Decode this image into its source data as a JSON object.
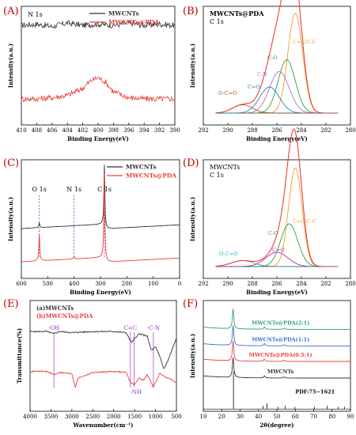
{
  "figure": {
    "panels": [
      {
        "id": "A",
        "label": "(A)"
      },
      {
        "id": "B",
        "label": "(B)"
      },
      {
        "id": "C",
        "label": "(C)"
      },
      {
        "id": "D",
        "label": "(D)"
      },
      {
        "id": "E",
        "label": "(E)"
      },
      {
        "id": "F",
        "label": "(F)"
      }
    ]
  },
  "chart_data": [
    {
      "id": "A",
      "type": "line",
      "annotation": "N 1s",
      "xlabel": "Binding Energy(eV)",
      "ylabel": "Intensity(a.u.)",
      "xlim": [
        410,
        390
      ],
      "xticks": [
        410,
        408,
        406,
        404,
        402,
        400,
        398,
        396,
        394,
        392,
        390
      ],
      "legend": {
        "placement": "top-right",
        "entries": [
          {
            "name": "MWCNTs",
            "color": "#333333"
          },
          {
            "name": "MWCNTs@PDA",
            "color": "#e8403a"
          }
        ]
      },
      "series": [
        {
          "name": "MWCNTs",
          "color": "#333333",
          "x": [
            410,
            408,
            406,
            404,
            402,
            400,
            398,
            396,
            394,
            392,
            390
          ],
          "y": [
            0.84,
            0.85,
            0.83,
            0.86,
            0.84,
            0.85,
            0.84,
            0.86,
            0.84,
            0.85,
            0.84
          ]
        },
        {
          "name": "MWCNTs@PDA",
          "color": "#e8403a",
          "x": [
            410,
            408,
            406,
            404,
            402,
            401,
            400,
            399,
            398,
            396,
            394,
            392,
            390
          ],
          "y": [
            0.22,
            0.22,
            0.23,
            0.25,
            0.31,
            0.37,
            0.4,
            0.36,
            0.28,
            0.23,
            0.22,
            0.22,
            0.22
          ]
        }
      ]
    },
    {
      "id": "B",
      "type": "line",
      "annotation": "MWCNTs@PDA\nC 1s",
      "xlabel": "Binding Energy(eV)",
      "ylabel": "Intensity(a.u.)",
      "xlim": [
        292,
        280
      ],
      "xticks": [
        292,
        290,
        288,
        286,
        284,
        282,
        280
      ],
      "peaks": [
        {
          "label": "C=C/C-C",
          "center": 284.5,
          "height": 0.84,
          "width": 0.6,
          "color": "#e8a030"
        },
        {
          "label": "C-O",
          "center": 285.2,
          "height": 0.45,
          "width": 0.7,
          "color": "#2f9e44"
        },
        {
          "label": "C-N",
          "center": 285.8,
          "height": 0.35,
          "width": 0.8,
          "color": "#b070d0"
        },
        {
          "label": "C=O",
          "center": 286.6,
          "height": 0.22,
          "width": 0.8,
          "color": "#1f8ab0"
        },
        {
          "label": "O-C=O",
          "center": 288.8,
          "height": 0.07,
          "width": 0.8,
          "color": "#a0522d"
        }
      ],
      "envelope_color": "#e8403a"
    },
    {
      "id": "C",
      "type": "line",
      "xlabel": "Binding Energy(eV)",
      "ylabel": "Intensity(a.u.)",
      "xlim": [
        600,
        0
      ],
      "xticks": [
        600,
        500,
        400,
        300,
        200,
        100,
        0
      ],
      "legend": {
        "placement": "top-right",
        "entries": [
          {
            "name": "MWCNTs",
            "color": "#333333"
          },
          {
            "name": "MWCNTs@PDA",
            "color": "#e8403a"
          }
        ]
      },
      "markers": [
        {
          "label": "O 1s",
          "x": 532
        },
        {
          "label": "N 1s",
          "x": 400
        },
        {
          "label": "C 1s",
          "x": 285
        }
      ],
      "series": [
        {
          "name": "MWCNTs",
          "color": "#333333",
          "offset": 0.42,
          "features": [
            {
              "x": 532,
              "h": 0.04
            },
            {
              "x": 285,
              "h": 0.5
            }
          ]
        },
        {
          "name": "MWCNTs@PDA",
          "color": "#e8403a",
          "offset": 0.14,
          "features": [
            {
              "x": 532,
              "h": 0.22
            },
            {
              "x": 400,
              "h": 0.02
            },
            {
              "x": 285,
              "h": 0.7
            }
          ]
        }
      ]
    },
    {
      "id": "D",
      "type": "line",
      "annotation": "MWCNTs\nC 1s",
      "xlabel": "Binding Energy(eV)",
      "ylabel": "Intensity(a.u.)",
      "xlim": [
        292,
        280
      ],
      "xticks": [
        292,
        290,
        288,
        286,
        284,
        282,
        280
      ],
      "peaks": [
        {
          "label": "C=C/C-C",
          "center": 284.5,
          "height": 0.83,
          "width": 0.55,
          "color": "#e8a030"
        },
        {
          "label": "C-O",
          "center": 285.0,
          "height": 0.36,
          "width": 0.7,
          "color": "#2f9e44"
        },
        {
          "label": "C=O",
          "center": 286.0,
          "height": 0.12,
          "width": 0.9,
          "color": "#b030b0"
        },
        {
          "label": "O-C=O",
          "center": 288.8,
          "height": 0.05,
          "width": 0.9,
          "color": "#1fb0c0"
        }
      ],
      "envelope_color": "#e8403a"
    },
    {
      "id": "E",
      "type": "line",
      "xlabel": "Wavenumber(cm⁻¹)",
      "ylabel": "Transmittance(%)",
      "xlim": [
        4000,
        500
      ],
      "xticks": [
        4000,
        3500,
        3000,
        2500,
        2000,
        1500,
        1000,
        500
      ],
      "legend": {
        "placement": "top-left",
        "entries": [
          {
            "name": "(a)MWCNTs",
            "color": "#333333"
          },
          {
            "name": "(b)MWCNTs@PDA",
            "color": "#e8403a"
          }
        ]
      },
      "markers": [
        {
          "label": "-OH",
          "x": 3430
        },
        {
          "label": "C=C",
          "x": 1600
        },
        {
          "label": "-NH",
          "x": 1510
        },
        {
          "label": "-C-N",
          "x": 1050
        }
      ],
      "series": [
        {
          "name": "(a)MWCNTs",
          "color": "#333333",
          "x": [
            4000,
            3600,
            3430,
            3300,
            3000,
            2500,
            2000,
            1700,
            1580,
            1400,
            1200,
            1100,
            1000,
            900,
            800,
            700,
            600,
            500
          ],
          "y": [
            0.72,
            0.72,
            0.7,
            0.72,
            0.71,
            0.72,
            0.72,
            0.71,
            0.62,
            0.7,
            0.68,
            0.55,
            0.58,
            0.5,
            0.38,
            0.46,
            0.56,
            0.66
          ]
        },
        {
          "name": "(b)MWCNTs@PDA",
          "color": "#e8403a",
          "x": [
            4000,
            3600,
            3430,
            3300,
            3000,
            2920,
            2850,
            2500,
            2000,
            1700,
            1600,
            1510,
            1400,
            1280,
            1200,
            1050,
            900,
            700,
            500
          ],
          "y": [
            0.36,
            0.36,
            0.33,
            0.35,
            0.34,
            0.22,
            0.3,
            0.35,
            0.36,
            0.35,
            0.26,
            0.24,
            0.3,
            0.28,
            0.33,
            0.22,
            0.34,
            0.3,
            0.26
          ]
        }
      ]
    },
    {
      "id": "F",
      "type": "line",
      "xlabel": "2θ(degree)",
      "ylabel": "Intensity(a.u.)",
      "xlim": [
        10,
        90
      ],
      "xticks": [
        10,
        20,
        30,
        40,
        50,
        60,
        70,
        80,
        90
      ],
      "series": [
        {
          "name": "MWCNTs@PDA(2:1)",
          "color": "#2f9e6e",
          "offset": 0.74
        },
        {
          "name": "MWCNTs@PDA(1:1)",
          "color": "#3a6fd0",
          "offset": 0.59
        },
        {
          "name": "MWCNTs@PDA(0.5:1)",
          "color": "#e8403a",
          "offset": 0.45
        },
        {
          "name": "MWCNTs",
          "color": "#333333",
          "offset": 0.3
        }
      ],
      "profile": [
        {
          "x": 26.2,
          "h": 0.18
        },
        {
          "x": 43.2,
          "h": 0.02
        },
        {
          "x": 54.0,
          "h": 0.01
        }
      ],
      "reference": {
        "label": "PDF:75−1621",
        "lines": [
          {
            "x": 26.4,
            "h": 0.34
          },
          {
            "x": 42.4,
            "h": 0.03
          },
          {
            "x": 44.6,
            "h": 0.05
          },
          {
            "x": 50.6,
            "h": 0.02
          },
          {
            "x": 54.6,
            "h": 0.03
          },
          {
            "x": 59.8,
            "h": 0.02
          },
          {
            "x": 70.4,
            "h": 0.02
          },
          {
            "x": 77.4,
            "h": 0.03
          },
          {
            "x": 83.4,
            "h": 0.02
          },
          {
            "x": 86.8,
            "h": 0.02
          }
        ]
      }
    }
  ]
}
